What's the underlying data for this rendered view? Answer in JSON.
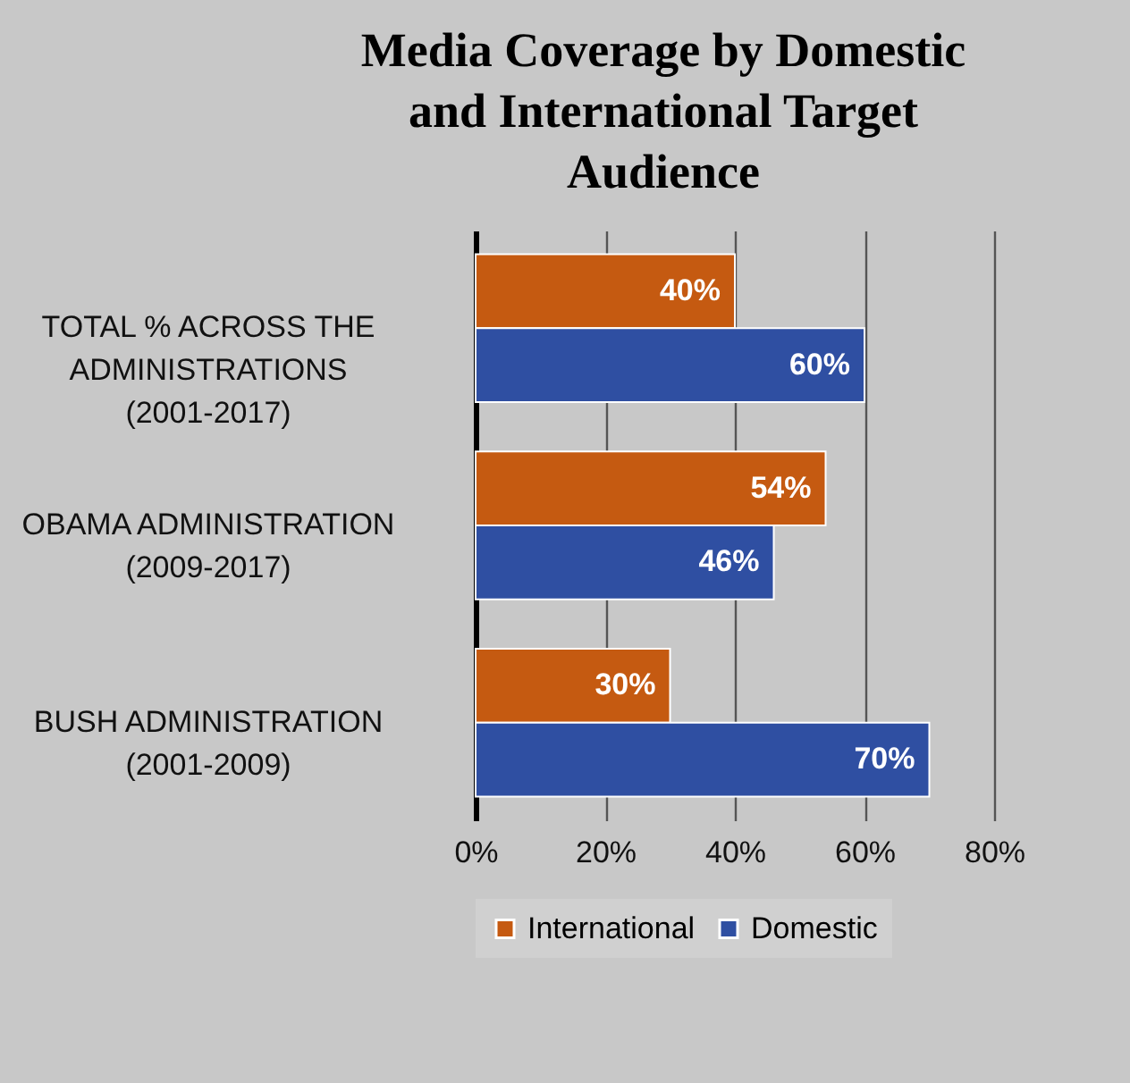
{
  "chart_data": {
    "type": "bar",
    "orientation": "horizontal",
    "title": "Media Coverage by Domestic and International Target Audience",
    "categories": [
      "TOTAL % ACROSS THE ADMINISTRATIONS (2001-2017)",
      "OBAMA ADMINISTRATION (2009-2017)",
      "BUSH ADMINISTRATION (2001-2009)"
    ],
    "series": [
      {
        "name": "International",
        "color": "#c55a11",
        "values": [
          40,
          54,
          30
        ],
        "value_labels": [
          "40%",
          "54%",
          "30%"
        ]
      },
      {
        "name": "Domestic",
        "color": "#2f4fa2",
        "values": [
          60,
          46,
          70
        ],
        "value_labels": [
          "60%",
          "46%",
          "70%"
        ]
      }
    ],
    "xlim": [
      0,
      80
    ],
    "xticks": [
      {
        "value": 0,
        "label": "0%"
      },
      {
        "value": 20,
        "label": "20%"
      },
      {
        "value": 40,
        "label": "40%"
      },
      {
        "value": 60,
        "label": "60%"
      },
      {
        "value": 80,
        "label": "80%"
      }
    ],
    "grid": "x",
    "legend": "bottom"
  }
}
